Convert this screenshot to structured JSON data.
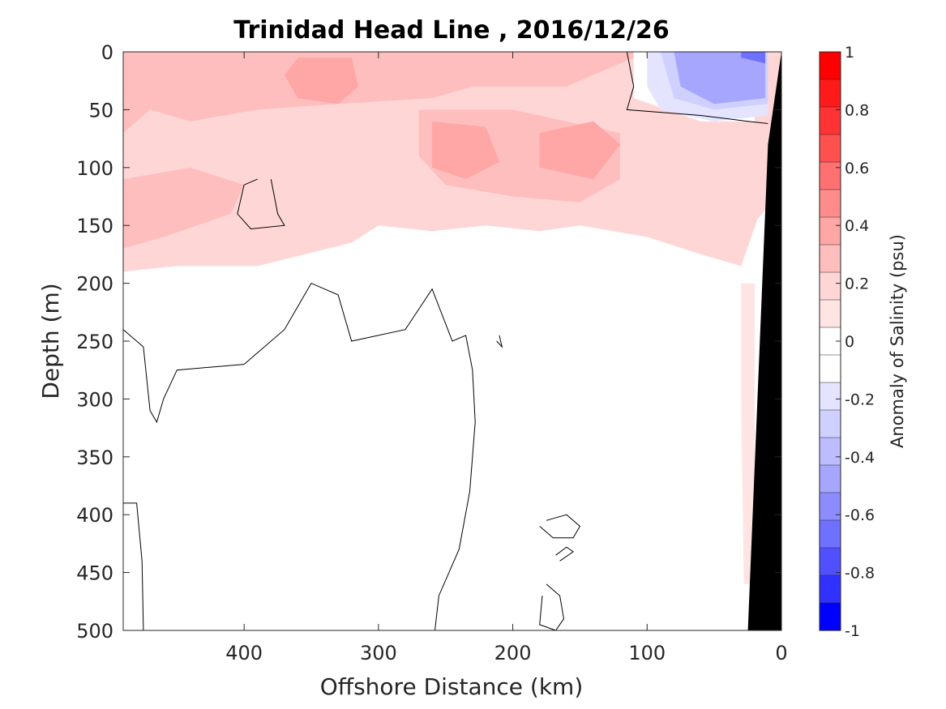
{
  "chart_data": {
    "type": "contour",
    "title": "Trinidad Head Line , 2016/12/26",
    "xlabel": "Offshore Distance (km)",
    "ylabel": "Depth (m)",
    "xlim": [
      490,
      0
    ],
    "ylim": [
      500,
      0
    ],
    "x_reversed": true,
    "y_reversed": true,
    "xticks": [
      "400",
      "300",
      "200",
      "100",
      "0"
    ],
    "xtick_values": [
      400,
      300,
      200,
      100,
      0
    ],
    "yticks": [
      "0",
      "50",
      "100",
      "150",
      "200",
      "250",
      "300",
      "350",
      "400",
      "450",
      "500"
    ],
    "ytick_values": [
      0,
      50,
      100,
      150,
      200,
      250,
      300,
      350,
      400,
      450,
      500
    ],
    "colorbar": {
      "label": "Anomaly of Salinity (psu)",
      "ticks": [
        "1",
        "0.8",
        "0.6",
        "0.4",
        "0.2",
        "0",
        "-0.2",
        "-0.4",
        "-0.6",
        "-0.8",
        "-1"
      ],
      "tick_values": [
        1,
        0.8,
        0.6,
        0.4,
        0.2,
        0,
        -0.2,
        -0.4,
        -0.6,
        -0.8,
        -1
      ],
      "range": [
        -1,
        1
      ],
      "level_step": 0.1,
      "colors": [
        "#ff0000",
        "#ff1a1a",
        "#ff3333",
        "#ff5050",
        "#ff7070",
        "#ff8c8c",
        "#ffa6a6",
        "#ffbebe",
        "#ffd6d6",
        "#ffe4e4",
        "#ffffff",
        "#ffffff",
        "#e4e4ff",
        "#d0d0ff",
        "#bcbcff",
        "#a6a6ff",
        "#8c8cff",
        "#7070ff",
        "#5050ff",
        "#3030ff",
        "#0000ff"
      ]
    },
    "regions": [
      {
        "level": 0.2,
        "color": "#ffd6d6",
        "desc": "upper-ocean positive anomaly, 0–190 m, offshore",
        "points": [
          [
            490,
            0
          ],
          [
            0,
            0
          ],
          [
            0,
            120
          ],
          [
            18,
            145
          ],
          [
            30,
            185
          ],
          [
            60,
            175
          ],
          [
            100,
            160
          ],
          [
            150,
            150
          ],
          [
            180,
            155
          ],
          [
            220,
            150
          ],
          [
            260,
            155
          ],
          [
            300,
            150
          ],
          [
            320,
            165
          ],
          [
            390,
            185
          ],
          [
            450,
            185
          ],
          [
            490,
            190
          ]
        ]
      },
      {
        "level": 0.3,
        "color": "#ffbebe",
        "desc": "moderate positive anomaly patch, 0–100 m",
        "points": [
          [
            490,
            0
          ],
          [
            100,
            0
          ],
          [
            160,
            30
          ],
          [
            230,
            30
          ],
          [
            260,
            40
          ],
          [
            330,
            45
          ],
          [
            390,
            50
          ],
          [
            440,
            60
          ],
          [
            470,
            50
          ],
          [
            490,
            70
          ]
        ]
      },
      {
        "level": 0.3,
        "color": "#ffbebe",
        "desc": "positive anomaly lobe, 100–180 m",
        "points": [
          [
            490,
            110
          ],
          [
            440,
            100
          ],
          [
            400,
            115
          ],
          [
            410,
            140
          ],
          [
            460,
            160
          ],
          [
            490,
            170
          ]
        ]
      },
      {
        "level": 0.3,
        "color": "#ffbebe",
        "desc": "positive anomaly near 200–250 km, 60–130 m",
        "points": [
          [
            270,
            50
          ],
          [
            200,
            50
          ],
          [
            160,
            60
          ],
          [
            120,
            70
          ],
          [
            120,
            110
          ],
          [
            150,
            130
          ],
          [
            200,
            125
          ],
          [
            250,
            115
          ],
          [
            270,
            90
          ]
        ]
      },
      {
        "level": 0.4,
        "color": "#ffa6a6",
        "desc": "core near 340 km, 0–45 m",
        "points": [
          [
            360,
            5
          ],
          [
            320,
            5
          ],
          [
            315,
            30
          ],
          [
            330,
            45
          ],
          [
            360,
            40
          ],
          [
            370,
            20
          ]
        ]
      },
      {
        "level": 0.4,
        "color": "#ffa6a6",
        "desc": "core near 220–240 km, 50–110 m",
        "points": [
          [
            260,
            60
          ],
          [
            220,
            65
          ],
          [
            210,
            95
          ],
          [
            235,
            110
          ],
          [
            260,
            100
          ]
        ]
      },
      {
        "level": 0.4,
        "color": "#ffa6a6",
        "desc": "core near 150–180 km, 60–110 m",
        "points": [
          [
            180,
            70
          ],
          [
            140,
            60
          ],
          [
            120,
            80
          ],
          [
            140,
            110
          ],
          [
            180,
            100
          ]
        ]
      },
      {
        "level": 0.1,
        "color": "#ffe4e4",
        "desc": "weak positive anomaly along nearshore slope, 200–460 m",
        "points": [
          [
            30,
            200
          ],
          [
            20,
            200
          ],
          [
            20,
            460
          ],
          [
            28,
            460
          ],
          [
            30,
            300
          ]
        ]
      },
      {
        "level": 0,
        "color": "#ffffff",
        "desc": "zero-anomaly pocket near coast, 0–50 m",
        "points": [
          [
            110,
            0
          ],
          [
            20,
            0
          ],
          [
            20,
            60
          ],
          [
            60,
            60
          ],
          [
            110,
            40
          ]
        ]
      },
      {
        "level": -0.2,
        "color": "#e4e4ff",
        "desc": "negative anomaly near coast, 0–60 m",
        "points": [
          [
            100,
            0
          ],
          [
            10,
            0
          ],
          [
            10,
            55
          ],
          [
            50,
            60
          ],
          [
            90,
            50
          ],
          [
            100,
            30
          ]
        ]
      },
      {
        "level": -0.3,
        "color": "#d0d0ff",
        "points": [
          [
            90,
            0
          ],
          [
            10,
            0
          ],
          [
            10,
            45
          ],
          [
            50,
            50
          ],
          [
            80,
            40
          ]
        ]
      },
      {
        "level": -0.4,
        "color": "#a6a6ff",
        "points": [
          [
            80,
            0
          ],
          [
            12,
            0
          ],
          [
            12,
            40
          ],
          [
            50,
            45
          ],
          [
            75,
            30
          ]
        ]
      },
      {
        "level": -0.6,
        "color": "#7070ff",
        "desc": "strongest negative anomaly, near surface nearshore",
        "points": [
          [
            30,
            0
          ],
          [
            12,
            0
          ],
          [
            12,
            10
          ],
          [
            30,
            5
          ]
        ]
      }
    ],
    "zero_contours": [
      {
        "points": [
          [
            115,
            0
          ],
          [
            110,
            30
          ],
          [
            115,
            50
          ],
          [
            60,
            55
          ],
          [
            25,
            60
          ],
          [
            10,
            62
          ]
        ]
      },
      {
        "points": [
          [
            390,
            110
          ],
          [
            400,
            115
          ],
          [
            405,
            140
          ],
          [
            395,
            153
          ],
          [
            370,
            150
          ],
          [
            375,
            140
          ],
          [
            380,
            110
          ]
        ]
      },
      {
        "points": [
          [
            490,
            240
          ],
          [
            475,
            255
          ],
          [
            470,
            310
          ],
          [
            465,
            320
          ],
          [
            460,
            300
          ],
          [
            450,
            275
          ],
          [
            400,
            270
          ],
          [
            370,
            240
          ],
          [
            350,
            200
          ],
          [
            330,
            210
          ],
          [
            320,
            250
          ],
          [
            280,
            240
          ],
          [
            260,
            205
          ],
          [
            250,
            235
          ],
          [
            245,
            250
          ],
          [
            235,
            245
          ],
          [
            230,
            275
          ],
          [
            228,
            320
          ],
          [
            232,
            380
          ],
          [
            240,
            430
          ],
          [
            255,
            470
          ],
          [
            258,
            500
          ]
        ]
      },
      {
        "points": [
          [
            490,
            390
          ],
          [
            480,
            390
          ],
          [
            476,
            440
          ],
          [
            475,
            500
          ]
        ]
      },
      {
        "points": [
          [
            210,
            245
          ],
          [
            208,
            255
          ],
          [
            212,
            250
          ]
        ]
      },
      {
        "points": [
          [
            175,
            405
          ],
          [
            160,
            400
          ],
          [
            150,
            410
          ],
          [
            155,
            420
          ],
          [
            170,
            420
          ],
          [
            180,
            410
          ]
        ]
      },
      {
        "points": [
          [
            165,
            440
          ],
          [
            155,
            432
          ],
          [
            160,
            428
          ],
          [
            168,
            435
          ]
        ]
      },
      {
        "points": [
          [
            175,
            460
          ],
          [
            165,
            470
          ],
          [
            162,
            490
          ],
          [
            168,
            500
          ],
          [
            180,
            495
          ],
          [
            178,
            470
          ]
        ]
      }
    ],
    "land": {
      "color": "#000000",
      "points": [
        [
          0,
          0
        ],
        [
          0,
          500
        ],
        [
          25,
          500
        ],
        [
          10,
          80
        ]
      ]
    }
  }
}
